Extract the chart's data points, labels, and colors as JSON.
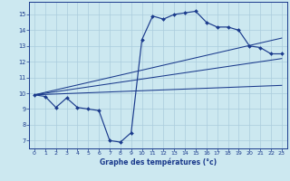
{
  "xlabel": "Graphe des températures (°c)",
  "background_color": "#cce8f0",
  "grid_color": "#aaccdd",
  "line_color": "#1a3a8c",
  "spine_color": "#1a3a8c",
  "xlim": [
    -0.5,
    23.5
  ],
  "ylim": [
    6.5,
    15.8
  ],
  "yticks": [
    7,
    8,
    9,
    10,
    11,
    12,
    13,
    14,
    15
  ],
  "xticks": [
    0,
    1,
    2,
    3,
    4,
    5,
    6,
    7,
    8,
    9,
    10,
    11,
    12,
    13,
    14,
    15,
    16,
    17,
    18,
    19,
    20,
    21,
    22,
    23
  ],
  "main_x": [
    0,
    1,
    2,
    3,
    4,
    5,
    6,
    7,
    8,
    9,
    10,
    11,
    12,
    13,
    14,
    15,
    16,
    17,
    18,
    19,
    20,
    21,
    22,
    23
  ],
  "main_y": [
    9.9,
    9.8,
    9.1,
    9.7,
    9.1,
    9.0,
    8.9,
    7.0,
    6.9,
    7.5,
    13.4,
    14.9,
    14.7,
    15.0,
    15.1,
    15.2,
    14.5,
    14.2,
    14.2,
    14.0,
    13.0,
    12.9,
    12.5,
    12.5
  ],
  "trend1_x": [
    0,
    23
  ],
  "trend1_y": [
    9.9,
    12.2
  ],
  "trend2_x": [
    0,
    23
  ],
  "trend2_y": [
    9.9,
    10.5
  ],
  "trend3_x": [
    0,
    23
  ],
  "trend3_y": [
    9.9,
    13.5
  ]
}
